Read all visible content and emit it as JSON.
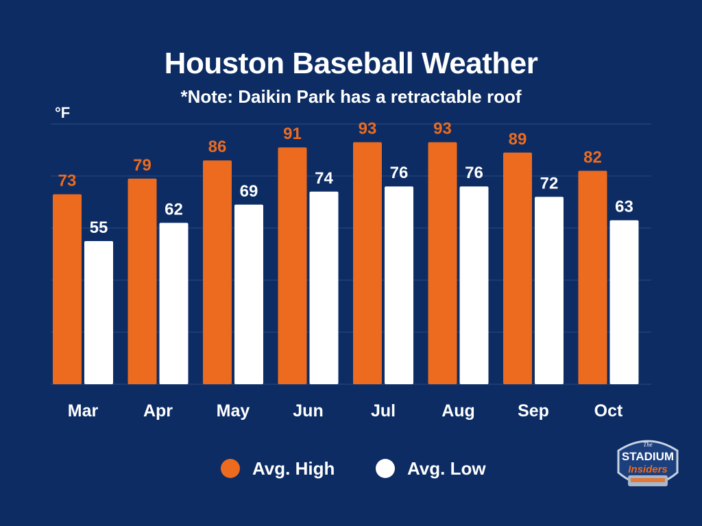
{
  "header": {
    "title": "Houston Baseball Weather",
    "subtitle": "*Note: Daikin Park has a retractable roof"
  },
  "logo": {
    "text_top": "The",
    "text_main": "STADIUM",
    "text_sub": "Insiders"
  },
  "colors": {
    "background": "#0c2c63",
    "high": "#ec6b1f",
    "low": "#ffffff",
    "grid": "#2a4a80"
  },
  "chart_data": {
    "type": "bar",
    "ylabel": "°F",
    "ylim": [
      0,
      100
    ],
    "grid": true,
    "legend_position": "bottom-center",
    "categories": [
      "Mar",
      "Apr",
      "May",
      "Jun",
      "Jul",
      "Aug",
      "Sep",
      "Oct"
    ],
    "series": [
      {
        "name": "Avg. High",
        "color": "#ec6b1f",
        "values": [
          73,
          79,
          86,
          91,
          93,
          93,
          89,
          82
        ]
      },
      {
        "name": "Avg. Low",
        "color": "#ffffff",
        "values": [
          55,
          62,
          69,
          74,
          76,
          76,
          72,
          63
        ]
      }
    ]
  }
}
